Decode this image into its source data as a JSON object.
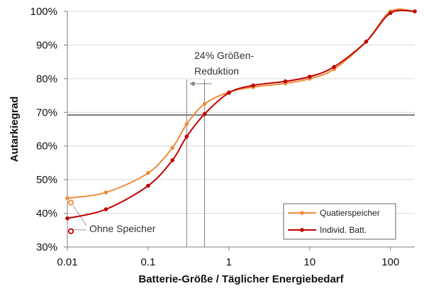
{
  "chart_data": {
    "type": "line",
    "xlabel": "Batterie-Größe / Täglicher Energiebedarf",
    "ylabel": "Autarkiegrad",
    "x_scale": "log",
    "xlim": [
      0.01,
      200
    ],
    "ylim": [
      30,
      100
    ],
    "x_ticks": [
      {
        "value": 0.01,
        "label": "0.01"
      },
      {
        "value": 0.1,
        "label": "0.1"
      },
      {
        "value": 1,
        "label": "1"
      },
      {
        "value": 10,
        "label": "10"
      },
      {
        "value": 100,
        "label": "100"
      }
    ],
    "y_ticks": [
      {
        "value": 30,
        "label": "30%"
      },
      {
        "value": 40,
        "label": "40%"
      },
      {
        "value": 50,
        "label": "50%"
      },
      {
        "value": 60,
        "label": "60%"
      },
      {
        "value": 70,
        "label": "70%"
      },
      {
        "value": 80,
        "label": "80%"
      },
      {
        "value": 90,
        "label": "90%"
      },
      {
        "value": 100,
        "label": "100%"
      }
    ],
    "grid": "horizontal",
    "legend_position": "bottom-right",
    "series": [
      {
        "name": "Quatierspeicher",
        "color": "#ee8c3c",
        "x": [
          0.01,
          0.03,
          0.1,
          0.2,
          0.3,
          0.5,
          1,
          2,
          5,
          10,
          20,
          50,
          100,
          200
        ],
        "y": [
          44.5,
          46.2,
          52.0,
          59.5,
          66.5,
          72.5,
          76.0,
          77.5,
          78.6,
          80.0,
          82.8,
          91.0,
          100,
          100
        ]
      },
      {
        "name": "Individ. Batt.",
        "color": "#c00000",
        "x": [
          0.01,
          0.03,
          0.1,
          0.2,
          0.3,
          0.5,
          1,
          2,
          5,
          10,
          20,
          50,
          100,
          200
        ],
        "y": [
          38.5,
          41.2,
          48.2,
          55.8,
          62.8,
          69.5,
          75.8,
          78.0,
          79.2,
          80.6,
          83.5,
          91.0,
          99.5,
          100
        ]
      }
    ],
    "no_storage_points": [
      {
        "series": "Quatierspeicher",
        "x": 0.01,
        "y": 43.2
      },
      {
        "series": "Individ. Batt.",
        "x": 0.01,
        "y": 34.7
      }
    ],
    "reference_line": {
      "y": 69.2,
      "color": "#7f7f7f"
    },
    "reduction_lines": [
      0.3,
      0.5
    ],
    "annotations": {
      "reduction": [
        "24% Größen-",
        "Reduktion"
      ],
      "no_storage": "Ohne Speicher"
    }
  }
}
